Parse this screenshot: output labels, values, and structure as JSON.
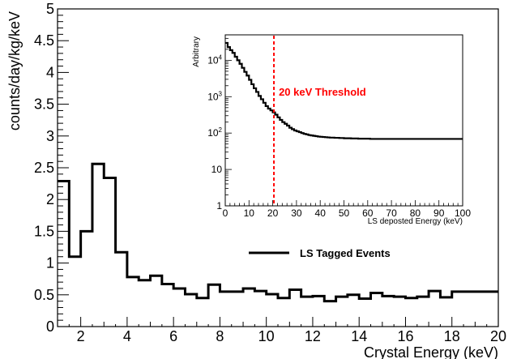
{
  "chart_data": [
    {
      "type": "line",
      "subtype": "step-histogram",
      "title": "",
      "xlabel": "Crystal Energy (keV)",
      "ylabel": "counts/day/kg/keV",
      "xlim": [
        1,
        20
      ],
      "ylim": [
        0,
        5
      ],
      "x_ticks": [
        2,
        4,
        6,
        8,
        10,
        12,
        14,
        16,
        18,
        20
      ],
      "y_ticks": [
        0,
        0.5,
        1,
        1.5,
        2,
        2.5,
        3,
        3.5,
        4,
        4.5,
        5
      ],
      "bin_width": 0.5,
      "series": [
        {
          "name": "LS Tagged Events",
          "color": "#000000",
          "bin_edges_start": 1,
          "values": [
            2.29,
            1.1,
            1.5,
            2.56,
            2.34,
            1.17,
            0.78,
            0.73,
            0.8,
            0.67,
            0.6,
            0.51,
            0.45,
            0.66,
            0.55,
            0.55,
            0.6,
            0.56,
            0.51,
            0.45,
            0.58,
            0.47,
            0.48,
            0.4,
            0.47,
            0.5,
            0.44,
            0.53,
            0.48,
            0.47,
            0.45,
            0.47,
            0.56,
            0.46,
            0.55,
            0.55,
            0.55,
            0.55
          ]
        }
      ],
      "legend": {
        "placement": "center-right",
        "entries": [
          "LS Tagged Events"
        ]
      },
      "grid": false
    },
    {
      "type": "line",
      "subtype": "step-histogram",
      "title": "",
      "xlabel": "LS deposted Energy (keV)",
      "ylabel": "Arbitrary",
      "xlim": [
        0,
        100
      ],
      "yscale": "log",
      "ylim": [
        1,
        50000
      ],
      "x_ticks": [
        0,
        10,
        20,
        30,
        40,
        50,
        60,
        70,
        80,
        90,
        100
      ],
      "y_ticks": [
        {
          "base": "1",
          "exp": ""
        },
        {
          "base": "10",
          "exp": ""
        },
        {
          "base": "10",
          "exp": "2"
        },
        {
          "base": "10",
          "exp": "3"
        },
        {
          "base": "10",
          "exp": "4"
        }
      ],
      "bin_width": 1,
      "series": [
        {
          "color": "#000000",
          "x_start": 0,
          "values": [
            30000,
            23000,
            19000,
            16000,
            12500,
            10000,
            8000,
            6200,
            4800,
            3800,
            2900,
            2200,
            1700,
            1350,
            1050,
            850,
            680,
            550,
            470,
            420,
            370,
            320,
            270,
            230,
            200,
            180,
            160,
            140,
            128,
            118,
            112,
            106,
            100,
            95,
            92,
            88,
            86,
            84,
            82,
            80,
            79,
            78,
            77,
            76,
            75,
            75,
            74,
            74,
            73,
            73,
            72,
            72,
            72,
            71,
            71,
            71,
            70,
            70,
            70,
            70,
            70,
            69,
            69,
            69,
            69,
            69,
            69,
            69,
            69,
            69,
            69,
            69,
            69,
            69,
            69,
            69,
            69,
            69,
            69,
            69,
            69,
            69,
            69,
            69,
            69,
            69,
            69,
            69,
            69,
            69,
            69,
            69,
            69,
            69,
            69,
            69,
            69,
            69,
            69,
            69
          ]
        }
      ],
      "annotations": [
        {
          "text": "20 keV Threshold",
          "x": 20.5,
          "color": "#ff0000",
          "style": "dashed-vertical-line"
        }
      ],
      "grid": false
    }
  ]
}
